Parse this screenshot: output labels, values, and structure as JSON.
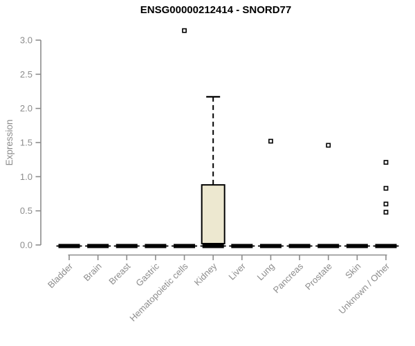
{
  "chart_data": {
    "type": "boxplot",
    "title": "ENSG00000212414 - SNORD77",
    "ylabel": "Expression",
    "xlabel": "",
    "ylim": [
      0,
      3.0
    ],
    "ytick_labels": [
      "0.0",
      "0.5",
      "1.0",
      "1.5",
      "2.0",
      "2.5",
      "3.0"
    ],
    "ytick_values": [
      0,
      0.5,
      1.0,
      1.5,
      2.0,
      2.5,
      3.0
    ],
    "grid": "off",
    "legend": "none",
    "categories": [
      "Bladder",
      "Brain",
      "Breast",
      "Gastric",
      "Hematopoietic cells",
      "Kidney",
      "Liver",
      "Lung",
      "Pancreas",
      "Prostate",
      "Skin",
      "Unknown / Other"
    ],
    "series": [
      {
        "category": "Bladder",
        "min": 0,
        "q1": 0,
        "median": 0,
        "q3": 0,
        "max": 0,
        "outliers": []
      },
      {
        "category": "Brain",
        "min": 0,
        "q1": 0,
        "median": 0,
        "q3": 0,
        "max": 0,
        "outliers": []
      },
      {
        "category": "Breast",
        "min": 0,
        "q1": 0,
        "median": 0,
        "q3": 0,
        "max": 0,
        "outliers": []
      },
      {
        "category": "Gastric",
        "min": 0,
        "q1": 0,
        "median": 0,
        "q3": 0,
        "max": 0,
        "outliers": []
      },
      {
        "category": "Hematopoietic cells",
        "min": 0,
        "q1": 0,
        "median": 0,
        "q3": 0,
        "max": 0,
        "outliers": [
          3.14
        ]
      },
      {
        "category": "Kidney",
        "min": 0,
        "q1": 0.02,
        "median": 0,
        "q3": 0.88,
        "max": 2.17,
        "outliers": []
      },
      {
        "category": "Liver",
        "min": 0,
        "q1": 0,
        "median": 0,
        "q3": 0,
        "max": 0,
        "outliers": []
      },
      {
        "category": "Lung",
        "min": 0,
        "q1": 0,
        "median": 0,
        "q3": 0,
        "max": 0,
        "outliers": [
          1.52
        ]
      },
      {
        "category": "Pancreas",
        "min": 0,
        "q1": 0,
        "median": 0,
        "q3": 0,
        "max": 0,
        "outliers": []
      },
      {
        "category": "Prostate",
        "min": 0,
        "q1": 0,
        "median": 0,
        "q3": 0,
        "max": 0,
        "outliers": [
          1.46
        ]
      },
      {
        "category": "Skin",
        "min": 0,
        "q1": 0,
        "median": 0,
        "q3": 0,
        "max": 0,
        "outliers": []
      },
      {
        "category": "Unknown / Other",
        "min": 0,
        "q1": 0,
        "median": 0,
        "q3": 0,
        "max": 0,
        "outliers": [
          1.21,
          0.83,
          0.6,
          0.48
        ]
      }
    ],
    "style": {
      "background": "#ffffff",
      "box_fill": "#ede8d0",
      "box_border": "#000000",
      "flat_box_color": "#000000",
      "outlier_fill": "#ffffff",
      "outlier_border": "#000000",
      "axis_color": "#8c8c8c",
      "tick_label_color": "#8c8c8c",
      "title_color": "#000000",
      "ylabel_color": "#8c8c8c"
    }
  }
}
